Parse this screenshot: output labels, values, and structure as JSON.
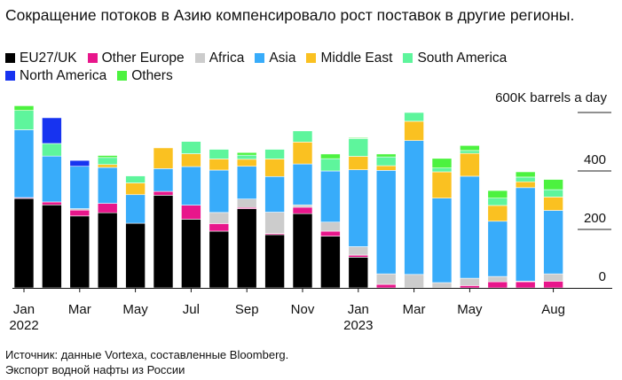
{
  "chart_data": {
    "type": "bar",
    "stacked": true,
    "title": "Сокращение потоков в Азию компенсировало рост поставок в другие регионы.",
    "ylabel": "600K barrels a day",
    "ylim": [
      0,
      600
    ],
    "yticks": [
      0,
      200,
      400,
      600
    ],
    "ytick_labels": [
      "0",
      "200",
      "400",
      "600K barrels a day"
    ],
    "y_axis_side": "right",
    "legend_position": "top",
    "grid": false,
    "categories": [
      "2022-01",
      "2022-02",
      "2022-03",
      "2022-04",
      "2022-05",
      "2022-06",
      "2022-07",
      "2022-08",
      "2022-09",
      "2022-10",
      "2022-11",
      "2022-12",
      "2023-01",
      "2023-02",
      "2023-03",
      "2023-04",
      "2023-05",
      "2023-06",
      "2023-07",
      "2023-08"
    ],
    "xticks": [
      {
        "index": 0,
        "label": "Jan",
        "year": "2022"
      },
      {
        "index": 2,
        "label": "Mar"
      },
      {
        "index": 4,
        "label": "May"
      },
      {
        "index": 6,
        "label": "Jul"
      },
      {
        "index": 8,
        "label": "Sep"
      },
      {
        "index": 10,
        "label": "Nov"
      },
      {
        "index": 12,
        "label": "Jan",
        "year": "2023"
      },
      {
        "index": 14,
        "label": "Mar"
      },
      {
        "index": 16,
        "label": "May"
      },
      {
        "index": 19,
        "label": "Aug"
      }
    ],
    "series": [
      {
        "name": "EU27/UK",
        "color": "#000000",
        "values": [
          306,
          284,
          246,
          257,
          221,
          317,
          235,
          194,
          271,
          182,
          254,
          177,
          105,
          0,
          0,
          0,
          0,
          0,
          0,
          0
        ]
      },
      {
        "name": "Other Europe",
        "color": "#e8168b",
        "values": [
          3,
          10,
          20,
          32,
          0,
          13,
          48,
          26,
          4,
          4,
          22,
          17,
          7,
          12,
          0,
          0,
          8,
          21,
          21,
          23
        ]
      },
      {
        "name": "Africa",
        "color": "#cccccc",
        "values": [
          0,
          0,
          5,
          0,
          0,
          0,
          0,
          38,
          29,
          73,
          8,
          31,
          29,
          36,
          46,
          18,
          25,
          18,
          2,
          25
        ]
      },
      {
        "name": "Asia",
        "color": "#38acfa",
        "values": [
          232,
          157,
          145,
          123,
          98,
          78,
          132,
          145,
          112,
          122,
          140,
          175,
          263,
          354,
          458,
          289,
          349,
          189,
          320,
          217
        ]
      },
      {
        "name": "Middle East",
        "color": "#fac121",
        "values": [
          0,
          0,
          0,
          10,
          40,
          71,
          44,
          38,
          24,
          60,
          75,
          0,
          46,
          16,
          66,
          90,
          78,
          54,
          20,
          46
        ]
      },
      {
        "name": "South America",
        "color": "#5ef59c",
        "values": [
          66,
          43,
          0,
          24,
          24,
          0,
          42,
          33,
          14,
          33,
          38,
          42,
          61,
          30,
          30,
          13,
          10,
          25,
          16,
          25
        ]
      },
      {
        "name": "North America",
        "color": "#1733f0",
        "values": [
          0,
          88,
          20,
          0,
          0,
          0,
          0,
          0,
          0,
          0,
          0,
          0,
          0,
          0,
          0,
          0,
          0,
          0,
          0,
          0
        ]
      },
      {
        "name": "Others",
        "color": "#4cf23f",
        "values": [
          16,
          0,
          0,
          7,
          0,
          0,
          0,
          0,
          9,
          0,
          0,
          16,
          3,
          10,
          0,
          33,
          17,
          26,
          18,
          35
        ]
      }
    ]
  },
  "source": {
    "line1": "Источник: данные Vortexa, составленные Bloomberg.",
    "line2": "Экспорт водной нафты из России"
  }
}
